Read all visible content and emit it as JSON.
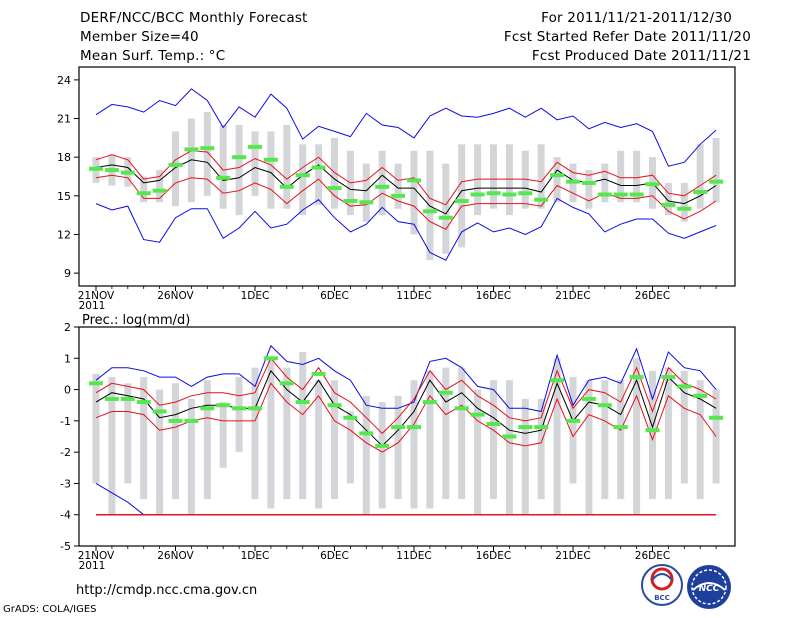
{
  "header": {
    "title": "DERF/NCC/BCC Monthly Forecast",
    "member_size": "Member Size=40",
    "variable1": "Mean Surf. Temp.: °C",
    "period": "For 2011/11/21-2011/12/30",
    "started": "Fcst Started Refer Date 2011/11/20",
    "produced": "Fcst Produced Date 2011/11/21"
  },
  "footer": {
    "url": "http://cmdp.ncc.cma.gov.cn",
    "credit": "GrADS: COLA/IGES"
  },
  "logos": {
    "bcc": "BCC",
    "ncc": "NCC"
  },
  "colors": {
    "box": "#d3d5d9",
    "median": "#000000",
    "inner": "#e8101c",
    "outer": "#0b0ce0",
    "obs": "#55e84e"
  },
  "chart_data": [
    {
      "type": "box",
      "title": "Mean Surf. Temp.: °C",
      "ylim": [
        8,
        25
      ],
      "yticks": [
        9,
        12,
        15,
        18,
        21,
        24
      ],
      "xticks": [
        {
          "day": 0,
          "label": "21NOV",
          "sub": "2011"
        },
        {
          "day": 5,
          "label": "26NOV",
          "sub": ""
        },
        {
          "day": 10,
          "label": "1DEC",
          "sub": ""
        },
        {
          "day": 15,
          "label": "6DEC",
          "sub": ""
        },
        {
          "day": 20,
          "label": "11DEC",
          "sub": ""
        },
        {
          "day": 25,
          "label": "16DEC",
          "sub": ""
        },
        {
          "day": 30,
          "label": "21DEC",
          "sub": ""
        },
        {
          "day": 35,
          "label": "26DEC",
          "sub": ""
        }
      ],
      "box_low": [
        16.0,
        15.8,
        15.7,
        14.5,
        14.5,
        14.2,
        14.5,
        15.0,
        14.0,
        13.5,
        15.0,
        14.0,
        14.0,
        13.5,
        14.3,
        14.0,
        13.5,
        13.0,
        13.5,
        14.0,
        12.0,
        10.0,
        10.5,
        11.0,
        13.5,
        14.0,
        13.5,
        14.0,
        14.0,
        14.5,
        14.5,
        14.0,
        14.5,
        14.5,
        14.5,
        14.0,
        13.5,
        13.0,
        14.0,
        14.5
      ],
      "box_high": [
        18.0,
        18.2,
        18.0,
        16.5,
        17.0,
        20.0,
        21.0,
        21.5,
        20.5,
        20.5,
        20.0,
        20.0,
        20.5,
        19.0,
        19.0,
        19.5,
        18.5,
        17.5,
        18.5,
        17.5,
        18.5,
        18.5,
        17.5,
        19.0,
        19.0,
        19.0,
        19.0,
        18.5,
        19.0,
        18.0,
        17.5,
        17.0,
        17.5,
        18.5,
        18.5,
        18.0,
        16.0,
        16.0,
        19.0,
        19.5
      ],
      "median": [
        17.2,
        17.4,
        17.2,
        16.0,
        16.2,
        17.2,
        17.8,
        17.6,
        16.2,
        16.4,
        17.2,
        16.8,
        15.6,
        16.6,
        17.4,
        16.3,
        15.5,
        15.4,
        16.6,
        15.6,
        15.6,
        14.2,
        13.6,
        15.4,
        15.6,
        15.6,
        15.6,
        15.6,
        15.3,
        17.0,
        16.2,
        16.0,
        16.3,
        15.8,
        15.8,
        16.0,
        14.6,
        14.4,
        15.0,
        15.8
      ],
      "inner_high": [
        17.8,
        18.2,
        17.8,
        16.3,
        16.5,
        17.8,
        18.5,
        18.4,
        17.0,
        17.2,
        17.9,
        17.4,
        16.3,
        17.2,
        18.0,
        16.8,
        16.0,
        16.2,
        17.2,
        16.2,
        16.4,
        14.8,
        14.3,
        16.1,
        16.3,
        16.3,
        16.3,
        16.3,
        16.1,
        17.6,
        16.8,
        16.6,
        16.9,
        16.4,
        16.4,
        16.6,
        15.2,
        15.0,
        15.8,
        16.6
      ],
      "inner_low": [
        16.4,
        16.6,
        16.4,
        14.8,
        14.8,
        16.0,
        16.4,
        16.3,
        15.2,
        15.4,
        16.0,
        15.5,
        14.4,
        15.4,
        16.3,
        15.0,
        14.2,
        14.3,
        15.2,
        14.6,
        14.2,
        13.0,
        12.4,
        14.2,
        14.4,
        14.4,
        14.4,
        14.4,
        14.2,
        15.8,
        15.2,
        14.6,
        15.2,
        14.8,
        14.8,
        15.0,
        13.8,
        13.2,
        13.8,
        14.6
      ],
      "outer_high": [
        21.3,
        22.1,
        21.9,
        21.5,
        22.4,
        22.0,
        23.3,
        22.4,
        20.3,
        21.9,
        21.1,
        22.9,
        21.8,
        19.4,
        20.4,
        20.0,
        19.6,
        21.4,
        20.5,
        20.3,
        19.5,
        21.2,
        21.8,
        21.2,
        21.1,
        21.4,
        21.8,
        21.1,
        21.8,
        20.9,
        21.2,
        20.2,
        20.7,
        20.3,
        20.6,
        20.0,
        17.3,
        17.6,
        19.0,
        20.1
      ],
      "outer_low": [
        14.4,
        13.9,
        14.2,
        11.6,
        11.4,
        13.3,
        14.0,
        14.0,
        11.7,
        12.5,
        13.8,
        12.5,
        12.8,
        13.9,
        14.7,
        13.3,
        12.2,
        12.8,
        14.1,
        13.0,
        12.8,
        10.6,
        10.0,
        12.2,
        12.9,
        12.2,
        12.5,
        12.0,
        12.6,
        14.8,
        14.1,
        13.6,
        12.2,
        12.8,
        13.2,
        13.2,
        12.1,
        11.7,
        12.2,
        12.7
      ],
      "obs": [
        17.1,
        17.0,
        16.8,
        15.2,
        15.4,
        17.4,
        18.6,
        18.7,
        16.4,
        18.0,
        18.8,
        17.8,
        15.7,
        16.6,
        17.2,
        15.6,
        14.6,
        14.5,
        15.7,
        15.0,
        16.2,
        13.8,
        13.3,
        14.6,
        15.1,
        15.2,
        15.1,
        15.2,
        14.7,
        16.6,
        16.1,
        16.0,
        15.1,
        15.1,
        15.1,
        15.9,
        14.3,
        14.0,
        15.3,
        16.1
      ]
    },
    {
      "type": "box",
      "title": "Prec.: log(mm/d)",
      "ylim": [
        -5,
        2
      ],
      "yticks": [
        -5,
        -4,
        -3,
        -2,
        -1,
        0,
        1,
        2
      ],
      "xticks": [
        {
          "day": 0,
          "label": "21NOV",
          "sub": "2011"
        },
        {
          "day": 5,
          "label": "26NOV",
          "sub": ""
        },
        {
          "day": 10,
          "label": "1DEC",
          "sub": ""
        },
        {
          "day": 15,
          "label": "6DEC",
          "sub": ""
        },
        {
          "day": 20,
          "label": "11DEC",
          "sub": ""
        },
        {
          "day": 25,
          "label": "16DEC",
          "sub": ""
        },
        {
          "day": 30,
          "label": "21DEC",
          "sub": ""
        },
        {
          "day": 35,
          "label": "26DEC",
          "sub": ""
        }
      ],
      "box_low": [
        -3.0,
        -4.0,
        -3.0,
        -3.5,
        -4.0,
        -3.5,
        -4.0,
        -3.5,
        -2.5,
        -2.0,
        -3.5,
        -3.8,
        -3.5,
        -3.5,
        -3.8,
        -3.5,
        -3.0,
        -4.0,
        -3.8,
        -3.5,
        -3.8,
        -3.8,
        -3.5,
        -3.5,
        -4.0,
        -3.5,
        -4.0,
        -4.0,
        -3.5,
        -4.0,
        -3.0,
        -4.0,
        -3.5,
        -3.5,
        -4.0,
        -3.5,
        -3.5,
        -3.0,
        -3.5,
        -3.0
      ],
      "box_high": [
        0.5,
        0.4,
        0.2,
        0.4,
        0.0,
        0.2,
        -0.3,
        0.3,
        -0.4,
        0.4,
        0.7,
        1.0,
        0.7,
        1.2,
        0.3,
        0.3,
        -0.7,
        -0.2,
        -0.4,
        -0.2,
        0.3,
        0.6,
        0.7,
        0.7,
        0.0,
        0.3,
        0.3,
        -0.3,
        -0.3,
        1.0,
        0.4,
        0.3,
        0.3,
        0.3,
        1.0,
        0.6,
        0.7,
        0.6,
        0.3,
        0.0
      ],
      "median": [
        -0.4,
        -0.1,
        -0.2,
        -0.3,
        -0.9,
        -0.8,
        -0.6,
        -0.5,
        -0.5,
        -0.6,
        -0.6,
        0.6,
        0.0,
        -0.4,
        0.3,
        -0.5,
        -0.8,
        -1.3,
        -1.8,
        -1.3,
        -0.7,
        0.3,
        -0.4,
        -0.1,
        -0.6,
        -0.9,
        -1.3,
        -1.4,
        -1.3,
        0.2,
        -1.0,
        -0.4,
        -0.5,
        -0.8,
        0.3,
        -1.2,
        0.4,
        -0.1,
        -0.3,
        -0.6
      ],
      "inner_high": [
        -0.1,
        0.2,
        0.1,
        0.0,
        -0.5,
        -0.4,
        -0.2,
        -0.1,
        -0.1,
        -0.2,
        -0.1,
        1.0,
        0.4,
        0.0,
        0.7,
        -0.1,
        -0.4,
        -0.9,
        -1.4,
        -0.9,
        -0.3,
        0.6,
        0.0,
        0.3,
        -0.2,
        -0.5,
        -0.9,
        -1.0,
        -0.9,
        0.6,
        -0.6,
        0.0,
        -0.1,
        -0.4,
        0.7,
        -0.7,
        0.7,
        0.2,
        0.0,
        -0.3
      ],
      "inner_low": [
        -0.9,
        -0.7,
        -0.7,
        -0.8,
        -1.3,
        -1.2,
        -1.0,
        -0.9,
        -1.0,
        -1.0,
        -1.0,
        0.2,
        -0.4,
        -0.8,
        -0.2,
        -1.0,
        -1.3,
        -1.7,
        -2.0,
        -1.7,
        -1.1,
        -0.2,
        -0.8,
        -0.5,
        -1.0,
        -1.3,
        -1.7,
        -1.8,
        -1.7,
        -0.3,
        -1.5,
        -0.8,
        -1.0,
        -1.3,
        -0.2,
        -1.6,
        -0.2,
        -0.6,
        -0.8,
        -1.5
      ],
      "outer_high": [
        0.3,
        0.7,
        0.7,
        0.6,
        0.4,
        0.4,
        0.1,
        0.4,
        0.5,
        0.5,
        0.1,
        1.4,
        0.9,
        0.8,
        1.0,
        0.6,
        0.3,
        -0.5,
        -0.6,
        -0.6,
        -0.4,
        0.9,
        1.0,
        0.7,
        0.1,
        0.0,
        -0.6,
        -0.6,
        -0.7,
        1.1,
        -0.5,
        0.3,
        0.4,
        0.2,
        1.3,
        -0.3,
        1.2,
        0.7,
        0.6,
        0.0
      ],
      "outer_low": [
        -3.0,
        -3.3,
        -3.6,
        -4.0,
        -4.0,
        -4.0,
        -4.0,
        -4.0,
        -4.0,
        -4.0,
        -4.0,
        -4.0,
        -4.0,
        -4.0,
        -4.0,
        -4.0,
        -4.0,
        -4.0,
        -4.0,
        -4.0,
        -4.0,
        -4.0,
        -4.0,
        -4.0,
        -4.0,
        -4.0,
        -4.0,
        -4.0,
        -4.0,
        -4.0,
        -4.0,
        -4.0,
        -4.0,
        -4.0,
        -4.0,
        -4.0,
        -4.0,
        -4.0,
        -4.0,
        -4.0
      ],
      "min_line": [
        -4.0,
        -4.0,
        -4.0,
        -4.0,
        -4.0,
        -4.0,
        -4.0,
        -4.0,
        -4.0,
        -4.0,
        -4.0,
        -4.0,
        -4.0,
        -4.0,
        -4.0,
        -4.0,
        -4.0,
        -4.0,
        -4.0,
        -4.0,
        -4.0,
        -4.0,
        -4.0,
        -4.0,
        -4.0,
        -4.0,
        -4.0,
        -4.0,
        -4.0,
        -4.0,
        -4.0,
        -4.0,
        -4.0,
        -4.0,
        -4.0,
        -4.0,
        -4.0,
        -4.0,
        -4.0,
        -4.0
      ],
      "obs": [
        0.2,
        -0.3,
        -0.3,
        -0.4,
        -0.7,
        -1.0,
        -1.0,
        -0.6,
        -0.5,
        -0.6,
        -0.6,
        1.0,
        0.2,
        -0.4,
        0.5,
        -0.5,
        -0.9,
        -1.4,
        -1.8,
        -1.2,
        -1.2,
        -0.4,
        -0.1,
        -0.6,
        -0.8,
        -1.1,
        -1.5,
        -1.2,
        -1.2,
        0.3,
        -1.0,
        -0.3,
        -0.5,
        -1.2,
        0.4,
        -1.3,
        0.4,
        0.1,
        -0.2,
        -0.9
      ]
    }
  ]
}
